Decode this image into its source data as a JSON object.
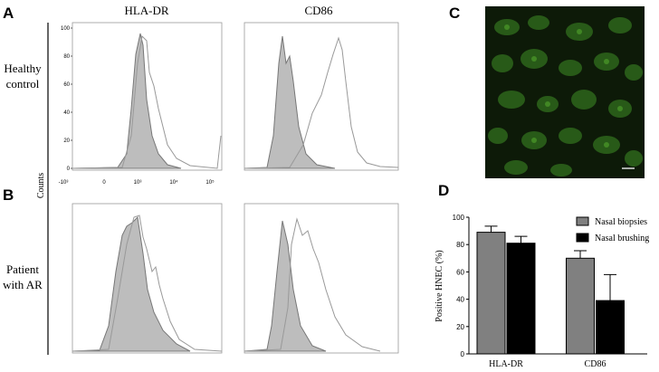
{
  "figure": {
    "panel_labels": [
      "A",
      "B",
      "C",
      "D"
    ],
    "columns": [
      "HLA-DR",
      "CD86"
    ],
    "rows": [
      [
        "Healthy",
        "control"
      ],
      [
        "Patient",
        "with AR"
      ]
    ],
    "y_axis_label": "Counts",
    "hist_yticks": [
      0,
      20,
      40,
      60,
      80,
      100
    ],
    "hist_xticks": [
      "-10³",
      "0",
      "10³",
      "10⁴",
      "10⁵"
    ]
  },
  "chart_data": {
    "type": "bar",
    "ylabel": "Positive HNEC (%)",
    "categories": [
      "HLA-DR",
      "CD86"
    ],
    "series": [
      {
        "name": "Nasal biopsies",
        "color": "#808080",
        "values": [
          89,
          70
        ],
        "errors": [
          4.5,
          5.5
        ]
      },
      {
        "name": "Nasal brushing",
        "color": "#000000",
        "values": [
          81,
          39
        ],
        "errors": [
          5,
          19
        ]
      }
    ],
    "ylim": [
      0,
      100
    ],
    "yticks": [
      0,
      20,
      40,
      60,
      80,
      100
    ]
  }
}
